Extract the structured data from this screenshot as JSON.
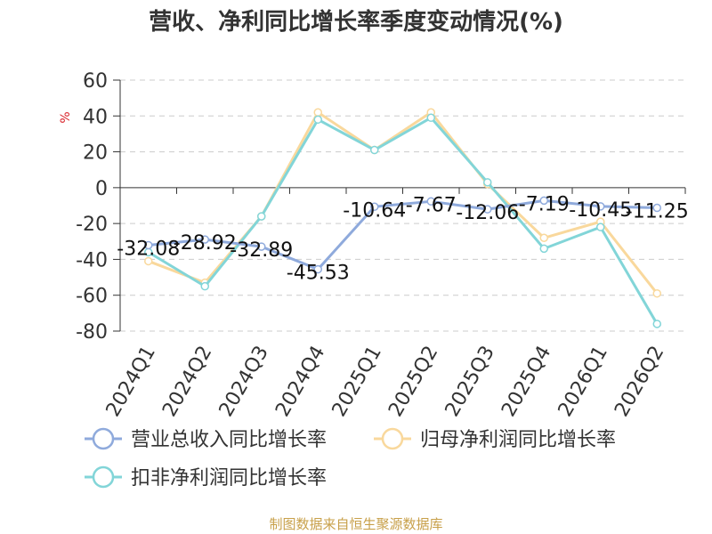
{
  "colors": {
    "revenue": "#8faadc",
    "net_profit": "#f9d89c",
    "deducted_profit": "#82d5d8",
    "grid": "#cccccc",
    "ylabel": "#d9232a",
    "source": "#c8a04a"
  },
  "chart_data": {
    "type": "line",
    "title": "营收、净利同比增长率季度变动情况(%)",
    "xlabel": "",
    "ylabel": "%",
    "ylim": [
      -80,
      60
    ],
    "yticks": [
      60,
      40,
      20,
      0,
      -20,
      -40,
      -60,
      -80
    ],
    "grid": true,
    "legend_position": "bottom",
    "categories": [
      "2024Q1",
      "2024Q2",
      "2024Q3",
      "2024Q4",
      "2025Q1",
      "2025Q2",
      "2025Q3",
      "2025Q4",
      "2026Q1",
      "2026Q2"
    ],
    "series": [
      {
        "name": "营业总收入同比增长率",
        "color_key": "revenue",
        "values": [
          -32.08,
          -28.92,
          -32.89,
          -45.53,
          -10.64,
          -7.67,
          -12.06,
          -7.19,
          -10.45,
          -11.25
        ],
        "labels": [
          "-32.08",
          "-28.92",
          "-32.89",
          "-45.53",
          "-10.64",
          "-7.67",
          "-12.06",
          "-7.19",
          "-10.45",
          "-11.25"
        ]
      },
      {
        "name": "归母净利润同比增长率",
        "color_key": "net_profit",
        "values": [
          -41,
          -53,
          -16,
          42,
          21,
          42,
          2,
          -28,
          -19,
          -59
        ]
      },
      {
        "name": "扣非净利润同比增长率",
        "color_key": "deducted_profit",
        "values": [
          -36,
          -55,
          -16,
          38,
          21,
          39,
          3,
          -34,
          -22,
          -76
        ]
      }
    ]
  },
  "source": "制图数据来自恒生聚源数据库"
}
